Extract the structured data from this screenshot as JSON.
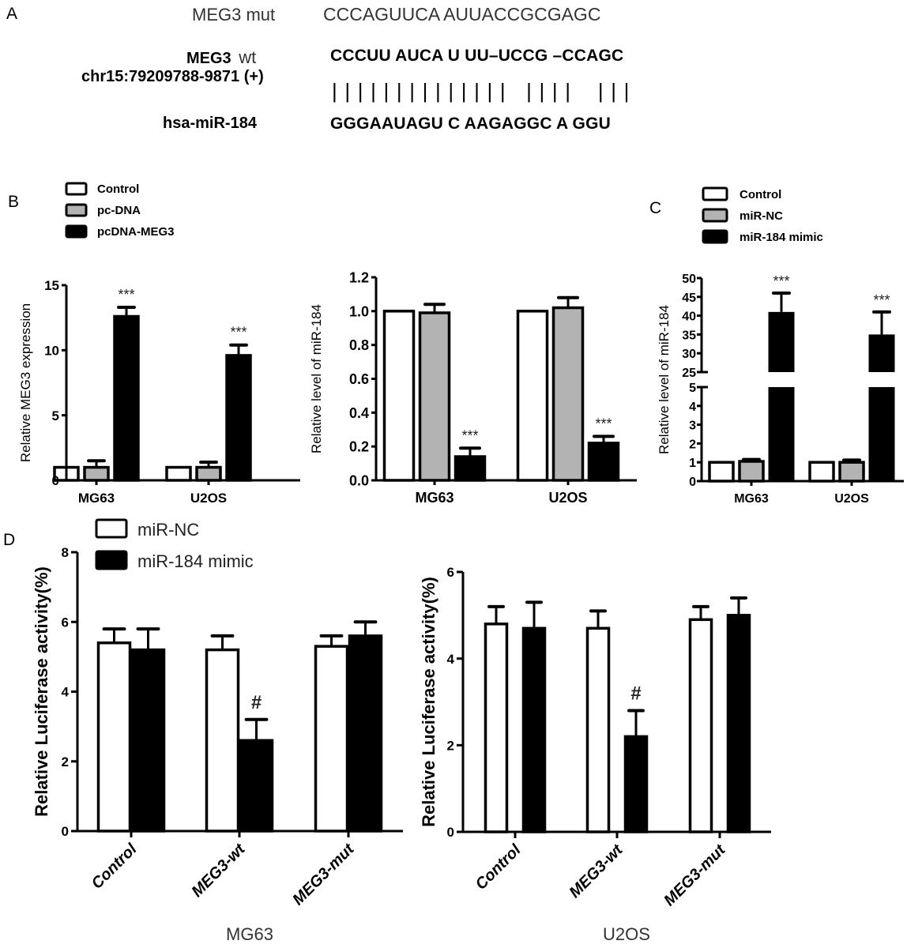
{
  "panel_a": {
    "letter": "A",
    "mut_label": "MEG3 mut",
    "mut_seq": "CCCAGUUCA AUUACCGCGAGC",
    "wt_label_1": "MEG3",
    "wt_label_2": "wt",
    "wt_coords": "chr15:79209788-9871 (+)",
    "wt_seq": "CCCUU AUCA U UU–UCCG –CCAGC",
    "pairing": "| | | | | | | | | | | | | |   | | | |    | | |",
    "mir_label": "hsa-miR-184",
    "mir_seq": "GGGAAUAGU C AAGAGGC A GGU"
  },
  "colors": {
    "white": "#ffffff",
    "gray": "#b3b3b3",
    "black": "#000000"
  },
  "chart_data": [
    {
      "id": "B1",
      "panel_letter": "B",
      "type": "bar",
      "ylabel": "Relative MEG3 expression",
      "categories": [
        "MG63",
        "U2OS"
      ],
      "ylim": [
        0,
        15
      ],
      "yticks": [
        "0",
        "5",
        "10",
        "15"
      ],
      "ytick_values": [
        0,
        5,
        10,
        15
      ],
      "legend": [
        "Control",
        "pc-DNA",
        "pcDNA-MEG3"
      ],
      "legend_position": "top-left",
      "series": [
        {
          "name": "Control",
          "fill": "white",
          "values": [
            1.0,
            1.0
          ],
          "errors": [
            0,
            0
          ]
        },
        {
          "name": "pc-DNA",
          "fill": "gray",
          "values": [
            1.0,
            1.0
          ],
          "errors": [
            0.5,
            0.4
          ]
        },
        {
          "name": "pcDNA-MEG3",
          "fill": "black",
          "values": [
            12.6,
            9.6
          ],
          "errors": [
            0.7,
            0.8
          ]
        }
      ],
      "annotations": [
        {
          "series": 2,
          "category": 0,
          "text": "***"
        },
        {
          "series": 2,
          "category": 1,
          "text": "***"
        }
      ]
    },
    {
      "id": "B2",
      "type": "bar",
      "ylabel": "Relative level of miR-184",
      "categories": [
        "MG63",
        "U2OS"
      ],
      "ylim": [
        0,
        1.2
      ],
      "yticks": [
        "0.0",
        "0.2",
        "0.4",
        "0.6",
        "0.8",
        "1.0",
        "1.2"
      ],
      "ytick_values": [
        0,
        0.2,
        0.4,
        0.6,
        0.8,
        1.0,
        1.2
      ],
      "series": [
        {
          "name": "Control",
          "fill": "white",
          "values": [
            1.0,
            1.0
          ],
          "errors": [
            0,
            0
          ]
        },
        {
          "name": "pc-DNA",
          "fill": "gray",
          "values": [
            0.99,
            1.02
          ],
          "errors": [
            0.05,
            0.06
          ]
        },
        {
          "name": "pcDNA-MEG3",
          "fill": "black",
          "values": [
            0.14,
            0.22
          ],
          "errors": [
            0.05,
            0.04
          ]
        }
      ],
      "annotations": [
        {
          "series": 2,
          "category": 0,
          "text": "***"
        },
        {
          "series": 2,
          "category": 1,
          "text": "***"
        }
      ]
    },
    {
      "id": "C",
      "panel_letter": "C",
      "type": "bar",
      "ylabel": "Relative level of miR-184",
      "categories": [
        "MG63",
        "U2OS"
      ],
      "axis_break": {
        "lower": [
          0,
          5
        ],
        "upper": [
          25,
          50
        ]
      },
      "yticks_lower": [
        "0",
        "1",
        "2",
        "3",
        "4",
        "5"
      ],
      "ytick_values_lower": [
        0,
        1,
        2,
        3,
        4,
        5
      ],
      "yticks_upper": [
        "25",
        "30",
        "35",
        "40",
        "45",
        "50"
      ],
      "ytick_values_upper": [
        25,
        30,
        35,
        40,
        45,
        50
      ],
      "legend": [
        "Control",
        "miR-NC",
        "miR-184 mimic"
      ],
      "legend_position": "top-left",
      "series": [
        {
          "name": "Control",
          "fill": "white",
          "values": [
            1.0,
            1.0
          ],
          "errors": [
            0,
            0
          ]
        },
        {
          "name": "miR-NC",
          "fill": "gray",
          "values": [
            1.05,
            1.0
          ],
          "errors": [
            0.1,
            0.12
          ]
        },
        {
          "name": "miR-184 mimic",
          "fill": "black",
          "values": [
            41,
            35
          ],
          "errors": [
            5,
            6
          ]
        }
      ],
      "annotations": [
        {
          "series": 2,
          "category": 0,
          "text": "***"
        },
        {
          "series": 2,
          "category": 1,
          "text": "***"
        }
      ]
    },
    {
      "id": "D1",
      "panel_letter": "D",
      "type": "bar",
      "ylabel": "Relative Luciferase activity(%)",
      "xlabel": "MG63",
      "categories": [
        "Control",
        "MEG3-wt",
        "MEG3-mut"
      ],
      "ylim": [
        0,
        8
      ],
      "yticks": [
        "0",
        "2",
        "4",
        "6",
        "8"
      ],
      "ytick_values": [
        0,
        2,
        4,
        6,
        8
      ],
      "legend": [
        "miR-NC",
        "miR-184 mimic"
      ],
      "legend_position": "top",
      "series": [
        {
          "name": "miR-NC",
          "fill": "white",
          "values": [
            5.4,
            5.2,
            5.3
          ],
          "errors": [
            0.4,
            0.4,
            0.3
          ]
        },
        {
          "name": "miR-184 mimic",
          "fill": "black",
          "values": [
            5.2,
            2.6,
            5.6
          ],
          "errors": [
            0.6,
            0.6,
            0.4
          ]
        }
      ],
      "annotations": [
        {
          "series": 1,
          "category": 1,
          "text": "#"
        }
      ]
    },
    {
      "id": "D2",
      "type": "bar",
      "ylabel": "Relative Luciferase activity(%)",
      "xlabel": "U2OS",
      "categories": [
        "Control",
        "MEG3-wt",
        "MEG3-mut"
      ],
      "ylim": [
        0,
        6
      ],
      "yticks": [
        "0",
        "2",
        "4",
        "6"
      ],
      "ytick_values": [
        0,
        2,
        4,
        6
      ],
      "series": [
        {
          "name": "miR-NC",
          "fill": "white",
          "values": [
            4.8,
            4.7,
            4.9
          ],
          "errors": [
            0.4,
            0.4,
            0.3
          ]
        },
        {
          "name": "miR-184 mimic",
          "fill": "black",
          "values": [
            4.7,
            2.2,
            5.0
          ],
          "errors": [
            0.6,
            0.6,
            0.4
          ]
        }
      ],
      "annotations": [
        {
          "series": 1,
          "category": 1,
          "text": "#"
        }
      ]
    }
  ]
}
